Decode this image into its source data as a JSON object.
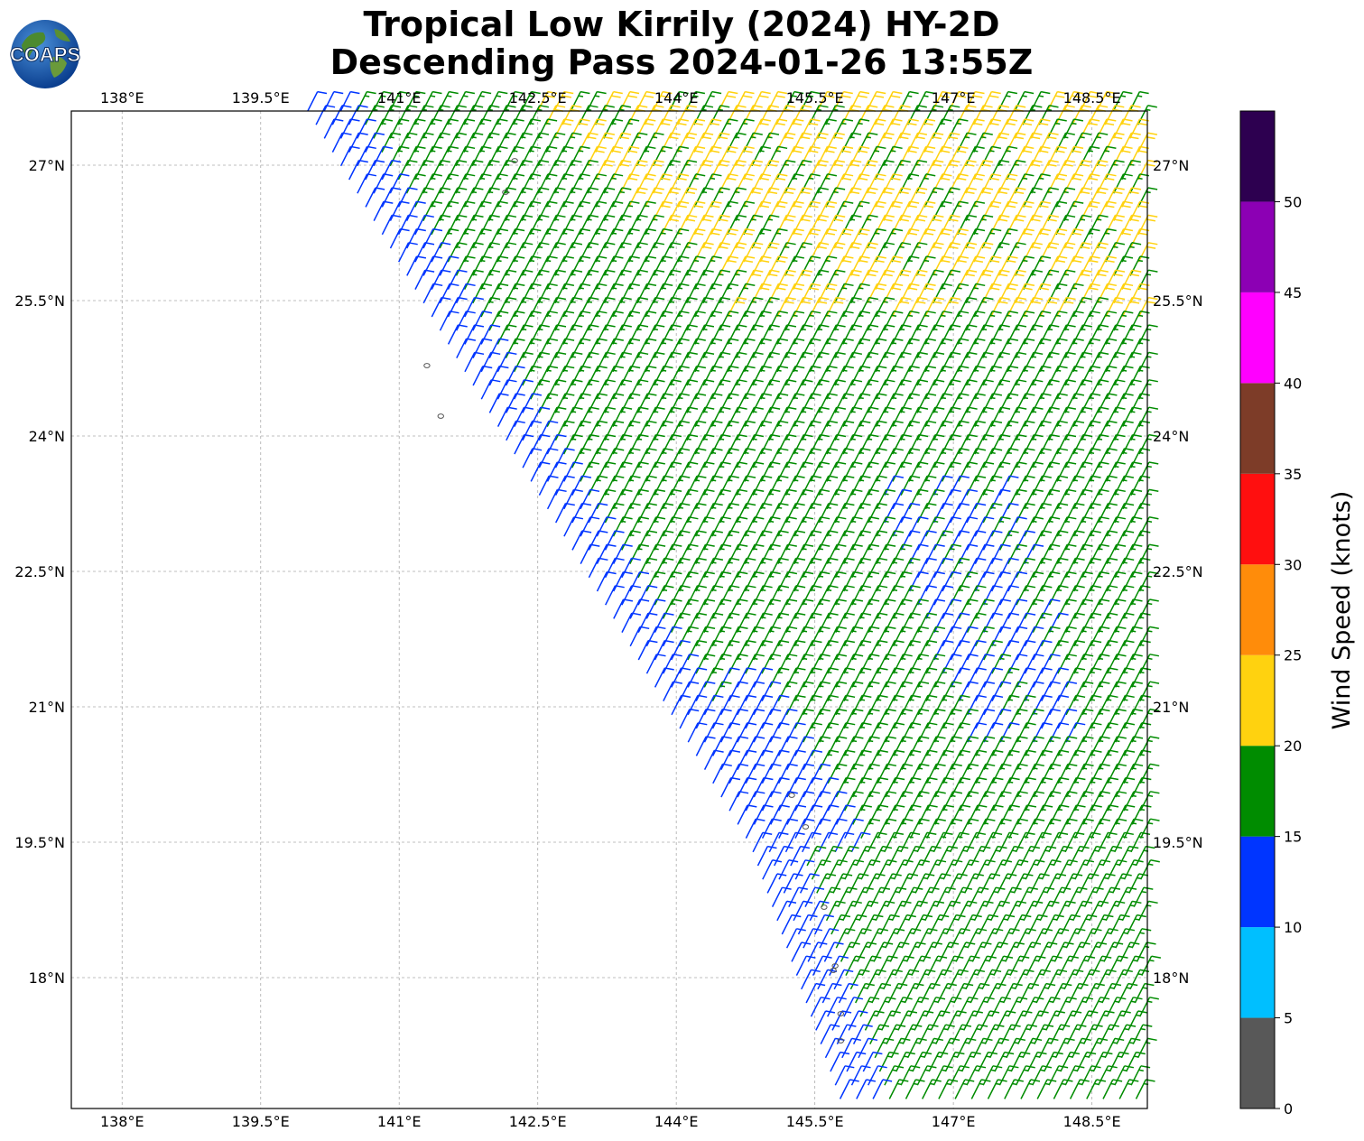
{
  "title": {
    "line1": "Tropical Low Kirrily (2024) HY-2D",
    "line2": "Descending Pass 2024-01-26 13:55Z"
  },
  "logo": {
    "text": "COAPS",
    "icon": "globe-logo-icon"
  },
  "map": {
    "lon_range": [
      137.45,
      149.1
    ],
    "lat_range": [
      16.55,
      27.6
    ],
    "lon_ticks": [
      138,
      139.5,
      141,
      142.5,
      144,
      145.5,
      147,
      148.5
    ],
    "lat_ticks": [
      18,
      19.5,
      21,
      22.5,
      24,
      25.5,
      27
    ],
    "lon_labels": [
      "138°E",
      "139.5°E",
      "141°E",
      "142.5°E",
      "144°E",
      "145.5°E",
      "147°E",
      "148.5°E"
    ],
    "lat_labels": [
      "18°N",
      "19.5°N",
      "21°N",
      "22.5°N",
      "24°N",
      "25.5°N",
      "27°N"
    ],
    "gridlines": true,
    "swath_edge": [
      [
        139.95,
        27.6
      ],
      [
        144.75,
        19.45
      ],
      [
        145.75,
        16.55
      ]
    ],
    "islands": [
      [
        142.25,
        27.05
      ],
      [
        142.15,
        26.7
      ],
      [
        141.3,
        24.78
      ],
      [
        141.45,
        24.22
      ],
      [
        145.25,
        20.02
      ],
      [
        145.4,
        19.67
      ],
      [
        145.6,
        18.78
      ],
      [
        145.72,
        18.13
      ],
      [
        145.7,
        18.08
      ],
      [
        145.78,
        17.6
      ],
      [
        145.78,
        17.3
      ]
    ]
  },
  "colorbar": {
    "label": "Wind Speed (knots)",
    "bounds": [
      0,
      5,
      10,
      15,
      20,
      25,
      30,
      35,
      40,
      45,
      50,
      55
    ],
    "tick_labels": [
      "0",
      "5",
      "10",
      "15",
      "20",
      "25",
      "30",
      "35",
      "40",
      "45",
      "50"
    ],
    "colors": [
      "#585858",
      "#00bfff",
      "#0035ff",
      "#008c00",
      "#ffd20f",
      "#ff8c0a",
      "#ff0f0f",
      "#7d3c28",
      "#ff00ff",
      "#8c00b4",
      "#2d0050"
    ]
  },
  "wind_colors": {
    "blue": "#0035ff",
    "green": "#008c00",
    "yellow": "#ffd20f"
  },
  "chart_data": {
    "type": "wind-barb-map",
    "units": "knots",
    "note_regions": [
      {
        "speed_knots": 22,
        "color": "yellow",
        "area": "north-east"
      },
      {
        "speed_knots": 18,
        "color": "green",
        "area": "most of swath"
      },
      {
        "speed_knots": 13,
        "color": "blue",
        "area": "western swath edge and band near 147E-149E, 21N-23N"
      }
    ]
  }
}
